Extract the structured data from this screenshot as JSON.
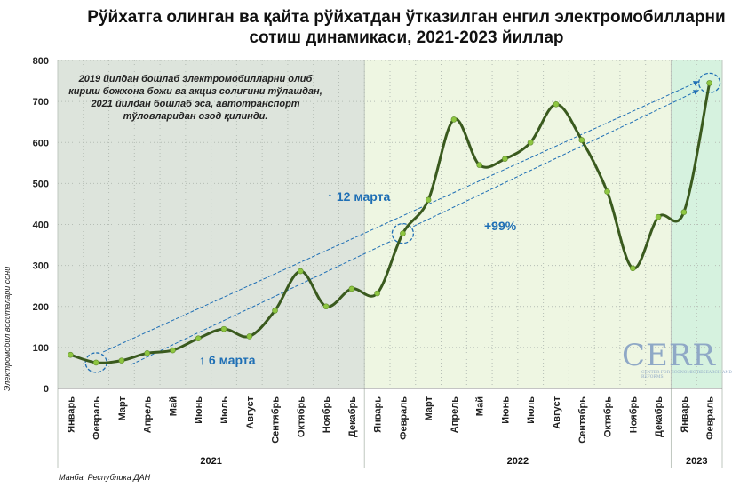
{
  "chart_data": {
    "type": "line",
    "title": "Рўйхатга олинган ва қайта рўйхатдан ўтказилган енгил электромобилларни сотиш динамикаси, 2021-2023 йиллар",
    "ylabel": "Электромобил воситалари сони",
    "ylim": [
      0,
      800
    ],
    "yticks": [
      "0",
      "100",
      "200",
      "300",
      "400",
      "500",
      "600",
      "700",
      "800"
    ],
    "categories": [
      "Январь",
      "Февраль",
      "Март",
      "Апрель",
      "Май",
      "Июнь",
      "Июль",
      "Август",
      "Сентябрь",
      "Октябрь",
      "Ноябрь",
      "Декабрь",
      "Январь",
      "Февраль",
      "Март",
      "Апрель",
      "Май",
      "Июнь",
      "Июль",
      "Август",
      "Сентябрь",
      "Октябрь",
      "Ноябрь",
      "Декабрь",
      "Январь",
      "Февраль"
    ],
    "series": [
      {
        "values": [
          82,
          63,
          68,
          86,
          93,
          122,
          145,
          127,
          190,
          286,
          200,
          243,
          232,
          378,
          460,
          656,
          545,
          560,
          600,
          693,
          606,
          480,
          293,
          418,
          430,
          745
        ]
      }
    ],
    "years": [
      {
        "label": "2021",
        "span": 12,
        "shade": "#dde4dc"
      },
      {
        "label": "2022",
        "span": 12,
        "shade": "#eef6e2"
      },
      {
        "label": "2023",
        "span": 2,
        "shade": "#d6f2df"
      }
    ],
    "line_color": "#3a5a1e",
    "marker_color": "#8ec641",
    "annotation_color": "#1f6fb5"
  },
  "note": "2019 йилдан бошлаб электромобилларни олиб кириш божхона божи ва акциз солиғини тўлашдан, 2021 йилдан бошлаб эса, автотранспорт тўловларидан озод қилинди.",
  "annotations": {
    "arrow_12": "↑ 12 марта",
    "arrow_6": "↑ 6 марта",
    "growth": "+99%"
  },
  "source": "Манба: Республика ДАН",
  "logo": {
    "name": "CERR",
    "subtitle": "Center for economic research and reforms"
  }
}
